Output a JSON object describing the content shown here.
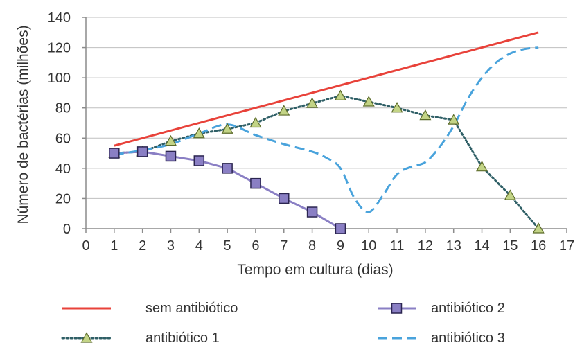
{
  "chart_data": {
    "type": "line",
    "title": "",
    "xlabel": "Tempo em cultura (dias)",
    "ylabel": "Número de bactérias (milhões)",
    "xlim": [
      0,
      17
    ],
    "ylim": [
      0,
      140
    ],
    "xticks": [
      "0",
      "1",
      "2",
      "3",
      "4",
      "5",
      "6",
      "7",
      "8",
      "9",
      "10",
      "11",
      "12",
      "13",
      "14",
      "15",
      "16",
      "17"
    ],
    "yticks": [
      "0",
      "20",
      "40",
      "60",
      "80",
      "100",
      "120",
      "140"
    ],
    "grid": "horizontal",
    "legend": "bottom",
    "series": [
      {
        "name": "sem antibiótico",
        "color": "#e8423a",
        "style": "solid",
        "marker": "none",
        "x": [
          1,
          16
        ],
        "y": [
          55,
          130
        ]
      },
      {
        "name": "antibiótico 1",
        "color": "#2f5f66",
        "style": "dotted",
        "marker": "triangle",
        "marker_color": "#c3d486",
        "x": [
          1,
          2,
          3,
          4,
          5,
          6,
          7,
          8,
          9,
          10,
          11,
          12,
          13,
          14,
          15,
          16
        ],
        "y": [
          50,
          51,
          58,
          63,
          66,
          70,
          78,
          83,
          88,
          84,
          80,
          75,
          72,
          41,
          22,
          0
        ]
      },
      {
        "name": "antibiótico 2",
        "color": "#8a7fc4",
        "style": "solid",
        "marker": "square",
        "marker_color": "#8a7fc4",
        "x": [
          1,
          2,
          3,
          4,
          5,
          6,
          7,
          8,
          9
        ],
        "y": [
          50,
          51,
          48,
          45,
          40,
          30,
          20,
          11,
          0
        ]
      },
      {
        "name": "antibiótico 3",
        "color": "#49a3dc",
        "style": "dashed",
        "marker": "none",
        "x": [
          1,
          2,
          3,
          4,
          5,
          6,
          7,
          8,
          8.5,
          9,
          9.5,
          10,
          10.5,
          11,
          11.5,
          12,
          12.5,
          13,
          13.5,
          14,
          14.5,
          15,
          15.5,
          16
        ],
        "y": [
          49,
          52,
          56,
          63,
          69,
          62,
          56,
          51,
          47,
          40,
          20,
          11,
          22,
          36,
          41,
          44,
          54,
          68,
          86,
          100,
          110,
          116,
          119,
          120
        ]
      }
    ]
  }
}
